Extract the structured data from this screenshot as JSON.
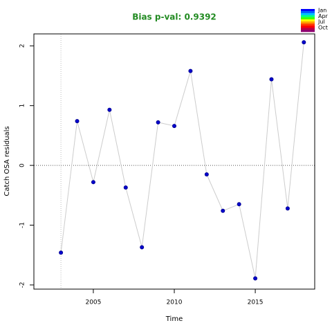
{
  "chart_data": {
    "type": "line",
    "title": "Bias p-val: 0.9392",
    "x_label": "Time",
    "y_label": "Catch OSA residuals",
    "x": [
      2003,
      2004,
      2005,
      2006,
      2007,
      2008,
      2009,
      2010,
      2011,
      2012,
      2013,
      2014,
      2015,
      2016,
      2017,
      2018
    ],
    "series": [
      {
        "color": "#0000cd",
        "line_color": "#cccccc",
        "values": [
          -1.46,
          0.74,
          -0.28,
          0.93,
          -0.37,
          -1.37,
          0.72,
          0.66,
          1.58,
          -0.15,
          -0.76,
          -0.65,
          -1.89,
          1.44,
          -0.72,
          2.06
        ]
      }
    ],
    "xlim": [
      2001.33,
      2018.67
    ],
    "ylim": [
      -2.07,
      2.2
    ],
    "xticks": [
      2005,
      2010,
      2015
    ],
    "yticks": [
      -2,
      -1,
      0,
      1,
      2
    ],
    "hline": 0,
    "vline": 2003,
    "legend": {
      "labels": [
        "Jan",
        "Apr",
        "Jul",
        "Oct"
      ],
      "colors": [
        "#0000ff",
        "#0060ff",
        "#00c0ff",
        "#00ff80",
        "#40ff00",
        "#ffff00",
        "#ffa000",
        "#ff4000",
        "#ff0000",
        "#c00040",
        "#900070"
      ]
    },
    "title_color": "#228b22"
  }
}
